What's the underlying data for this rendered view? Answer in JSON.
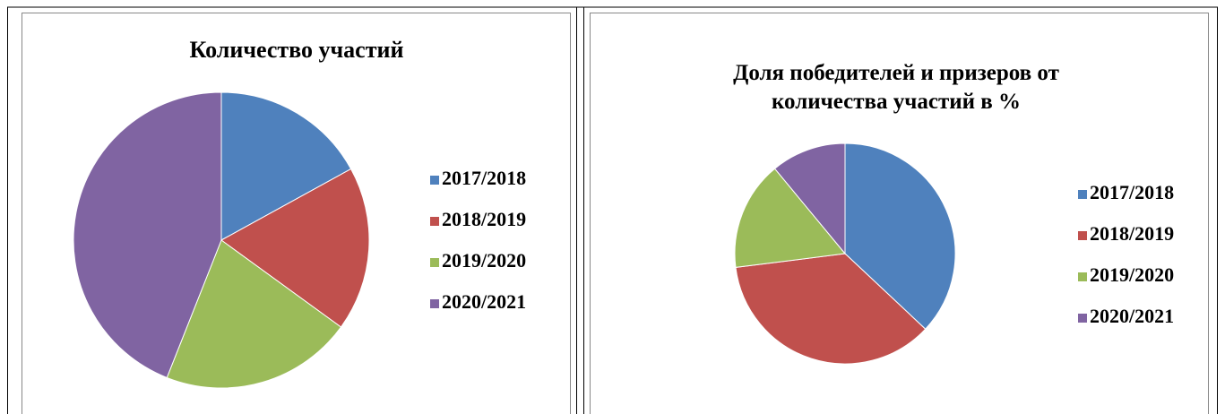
{
  "chart_data": [
    {
      "type": "pie",
      "title": "Количество участий",
      "categories": [
        "2017/2018",
        "2018/2019",
        "2019/2020",
        "2020/2021"
      ],
      "values": [
        17,
        18,
        21,
        44
      ],
      "colors": [
        "#4f81bd",
        "#c0504d",
        "#9bbb59",
        "#8064a2"
      ],
      "legend": "right"
    },
    {
      "type": "pie",
      "title": "Доля победителей и призеров от количества участий в %",
      "categories": [
        "2017/2018",
        "2018/2019",
        "2019/2020",
        "2020/2021"
      ],
      "values": [
        37,
        36,
        16,
        11
      ],
      "colors": [
        "#4f81bd",
        "#c0504d",
        "#9bbb59",
        "#8064a2"
      ],
      "legend": "right"
    }
  ]
}
